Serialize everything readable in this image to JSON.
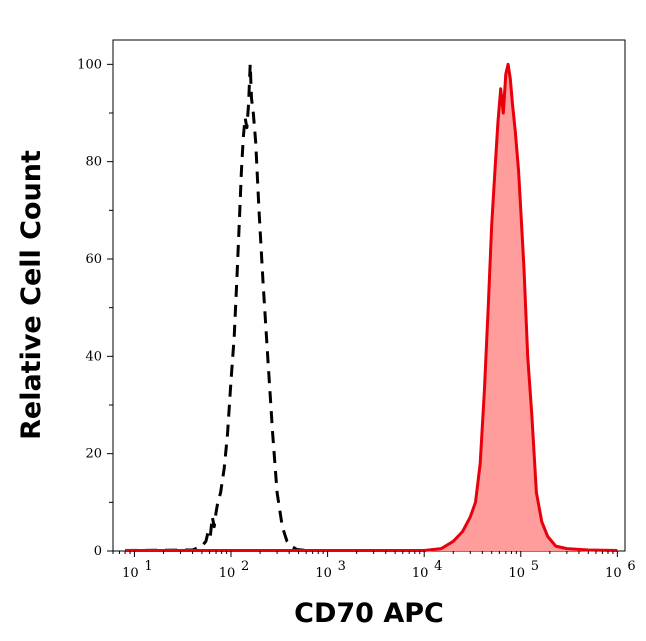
{
  "chart_data": {
    "type": "histogram",
    "xlabel": "CD70 APC",
    "ylabel": "Relative Cell Count",
    "x_scale": "log",
    "xlim": [
      6,
      1200000
    ],
    "ylim": [
      0,
      105
    ],
    "x_ticks": [
      {
        "value": 10,
        "base": "10",
        "exp": "1"
      },
      {
        "value": 100,
        "base": "10",
        "exp": "2"
      },
      {
        "value": 1000,
        "base": "10",
        "exp": "3"
      },
      {
        "value": 10000,
        "base": "10",
        "exp": "4"
      },
      {
        "value": 100000,
        "base": "10",
        "exp": "5"
      },
      {
        "value": 1000000,
        "base": "10",
        "exp": "6"
      }
    ],
    "y_ticks": [
      {
        "value": 0,
        "label": "0"
      },
      {
        "value": 20,
        "label": "20"
      },
      {
        "value": 40,
        "label": "40"
      },
      {
        "value": 60,
        "label": "60"
      },
      {
        "value": 80,
        "label": "80"
      },
      {
        "value": 100,
        "label": "100"
      }
    ],
    "grid": false,
    "legend": "none",
    "series": [
      {
        "style": "dashed",
        "color": "#000000",
        "fill": "none",
        "points": [
          [
            8,
            0.1
          ],
          [
            40,
            0.2
          ],
          [
            50,
            1
          ],
          [
            55,
            2
          ],
          [
            58,
            4
          ],
          [
            61,
            3
          ],
          [
            64,
            7
          ],
          [
            67,
            5
          ],
          [
            70,
            8
          ],
          [
            73,
            10
          ],
          [
            78,
            12
          ],
          [
            85,
            17
          ],
          [
            92,
            24
          ],
          [
            100,
            35
          ],
          [
            108,
            44
          ],
          [
            115,
            56
          ],
          [
            122,
            68
          ],
          [
            128,
            78
          ],
          [
            134,
            85
          ],
          [
            140,
            89
          ],
          [
            146,
            87
          ],
          [
            152,
            92
          ],
          [
            158,
            100
          ],
          [
            163,
            93
          ],
          [
            170,
            90
          ],
          [
            180,
            84
          ],
          [
            195,
            70
          ],
          [
            215,
            55
          ],
          [
            240,
            40
          ],
          [
            270,
            24
          ],
          [
            300,
            12
          ],
          [
            340,
            5
          ],
          [
            380,
            2
          ],
          [
            420,
            1
          ],
          [
            480,
            0.3
          ],
          [
            600,
            0.1
          ],
          [
            10000,
            0.1
          ]
        ]
      },
      {
        "style": "solid",
        "color": "#e8000a",
        "fill": "#ff9c9c",
        "points": [
          [
            8,
            0.1
          ],
          [
            10000,
            0.1
          ],
          [
            15000,
            0.5
          ],
          [
            20000,
            2
          ],
          [
            25000,
            4
          ],
          [
            30000,
            7
          ],
          [
            34000,
            10
          ],
          [
            38000,
            18
          ],
          [
            42000,
            33
          ],
          [
            46000,
            50
          ],
          [
            50000,
            67
          ],
          [
            54000,
            78
          ],
          [
            58000,
            88
          ],
          [
            62000,
            95
          ],
          [
            66000,
            90
          ],
          [
            70000,
            98
          ],
          [
            74000,
            100
          ],
          [
            78000,
            97
          ],
          [
            82000,
            92
          ],
          [
            88000,
            86
          ],
          [
            95000,
            78
          ],
          [
            100000,
            70
          ],
          [
            108000,
            58
          ],
          [
            118000,
            40
          ],
          [
            130000,
            28
          ],
          [
            145000,
            12
          ],
          [
            165000,
            6
          ],
          [
            190000,
            3
          ],
          [
            230000,
            1
          ],
          [
            300000,
            0.5
          ],
          [
            500000,
            0.2
          ],
          [
            1000000,
            0.1
          ]
        ]
      }
    ]
  }
}
